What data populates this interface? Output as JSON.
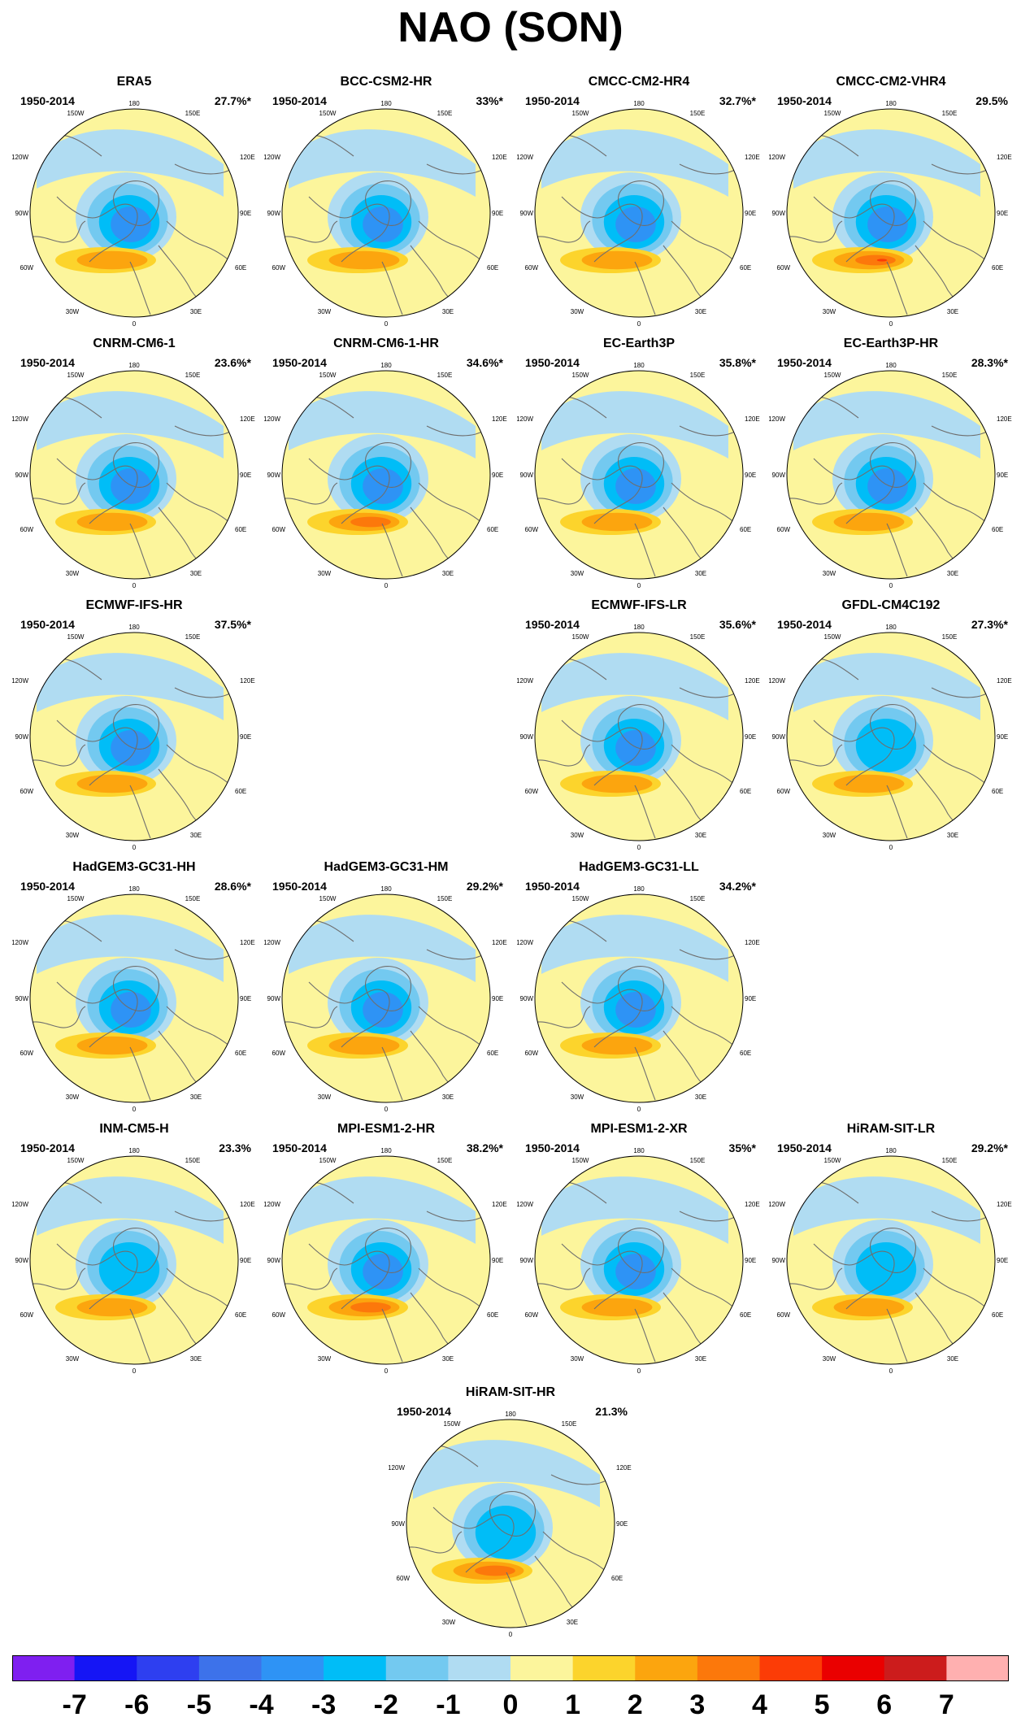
{
  "title": "NAO (SON)",
  "axes_labels": {
    "top": "180",
    "bottom": "0",
    "left_upper": "150W",
    "right_upper": "150E",
    "left_mid1": "120W",
    "right_mid1": "120E",
    "left_mid2": "90W",
    "right_mid2": "90E",
    "left_mid3": "60W",
    "right_mid3": "60E",
    "left_lower": "30W",
    "right_lower": "30E"
  },
  "panels": [
    {
      "name": "ERA5",
      "period": "1950-2014",
      "variance": "27.7%*",
      "neg_min": -4,
      "pos_max": 2
    },
    {
      "name": "BCC-CSM2-HR",
      "period": "1950-2014",
      "variance": "33%*",
      "neg_min": -4,
      "pos_max": 2
    },
    {
      "name": "CMCC-CM2-HR4",
      "period": "1950-2014",
      "variance": "32.7%*",
      "neg_min": -4,
      "pos_max": 2
    },
    {
      "name": "CMCC-CM2-VHR4",
      "period": "1950-2014",
      "variance": "29.5%",
      "neg_min": -4,
      "pos_max": 4
    },
    {
      "name": "CNRM-CM6-1",
      "period": "1950-2014",
      "variance": "23.6%*",
      "neg_min": -4,
      "pos_max": 2
    },
    {
      "name": "CNRM-CM6-1-HR",
      "period": "1950-2014",
      "variance": "34.6%*",
      "neg_min": -4,
      "pos_max": 3
    },
    {
      "name": "EC-Earth3P",
      "period": "1950-2014",
      "variance": "35.8%*",
      "neg_min": -4,
      "pos_max": 2
    },
    {
      "name": "EC-Earth3P-HR",
      "period": "1950-2014",
      "variance": "28.3%*",
      "neg_min": -4,
      "pos_max": 2
    },
    {
      "name": "ECMWF-IFS-HR",
      "period": "1950-2014",
      "variance": "37.5%*",
      "neg_min": -4,
      "pos_max": 2
    },
    {
      "name": "ECMWF-IFS-LR",
      "period": "1950-2014",
      "variance": "35.6%*",
      "neg_min": -4,
      "pos_max": 2
    },
    {
      "name": "GFDL-CM4C192",
      "period": "1950-2014",
      "variance": "27.3%*",
      "neg_min": -3,
      "pos_max": 2
    },
    {
      "name": "HadGEM3-GC31-HH",
      "period": "1950-2014",
      "variance": "28.6%*",
      "neg_min": -4,
      "pos_max": 2
    },
    {
      "name": "HadGEM3-GC31-HM",
      "period": "1950-2014",
      "variance": "29.2%*",
      "neg_min": -4,
      "pos_max": 2
    },
    {
      "name": "HadGEM3-GC31-LL",
      "period": "1950-2014",
      "variance": "34.2%*",
      "neg_min": -4,
      "pos_max": 2
    },
    {
      "name": "INM-CM5-H",
      "period": "1950-2014",
      "variance": "23.3%",
      "neg_min": -3,
      "pos_max": 2
    },
    {
      "name": "MPI-ESM1-2-HR",
      "period": "1950-2014",
      "variance": "38.2%*",
      "neg_min": -4,
      "pos_max": 3
    },
    {
      "name": "MPI-ESM1-2-XR",
      "period": "1950-2014",
      "variance": "35%*",
      "neg_min": -4,
      "pos_max": 2
    },
    {
      "name": "HiRAM-SIT-LR",
      "period": "1950-2014",
      "variance": "29.2%*",
      "neg_min": -3,
      "pos_max": 2
    },
    {
      "name": "HiRAM-SIT-HR",
      "period": "1950-2014",
      "variance": "21.3%",
      "neg_min": -3,
      "pos_max": 3
    }
  ],
  "colorbar": {
    "colors": [
      "#7f1ff0",
      "#1515f5",
      "#2e3ff0",
      "#3d72ea",
      "#2e93f5",
      "#00bdf7",
      "#73c9f0",
      "#b0dcf2",
      "#fcf59c",
      "#fcd42c",
      "#fca50e",
      "#fc780b",
      "#fc3c06",
      "#ea0000",
      "#cc1c1c",
      "#ffb0b0"
    ],
    "labels": [
      "-7",
      "-6",
      "-5",
      "-4",
      "-3",
      "-2",
      "-1",
      "0",
      "1",
      "2",
      "3",
      "4",
      "5",
      "6",
      "7"
    ]
  }
}
